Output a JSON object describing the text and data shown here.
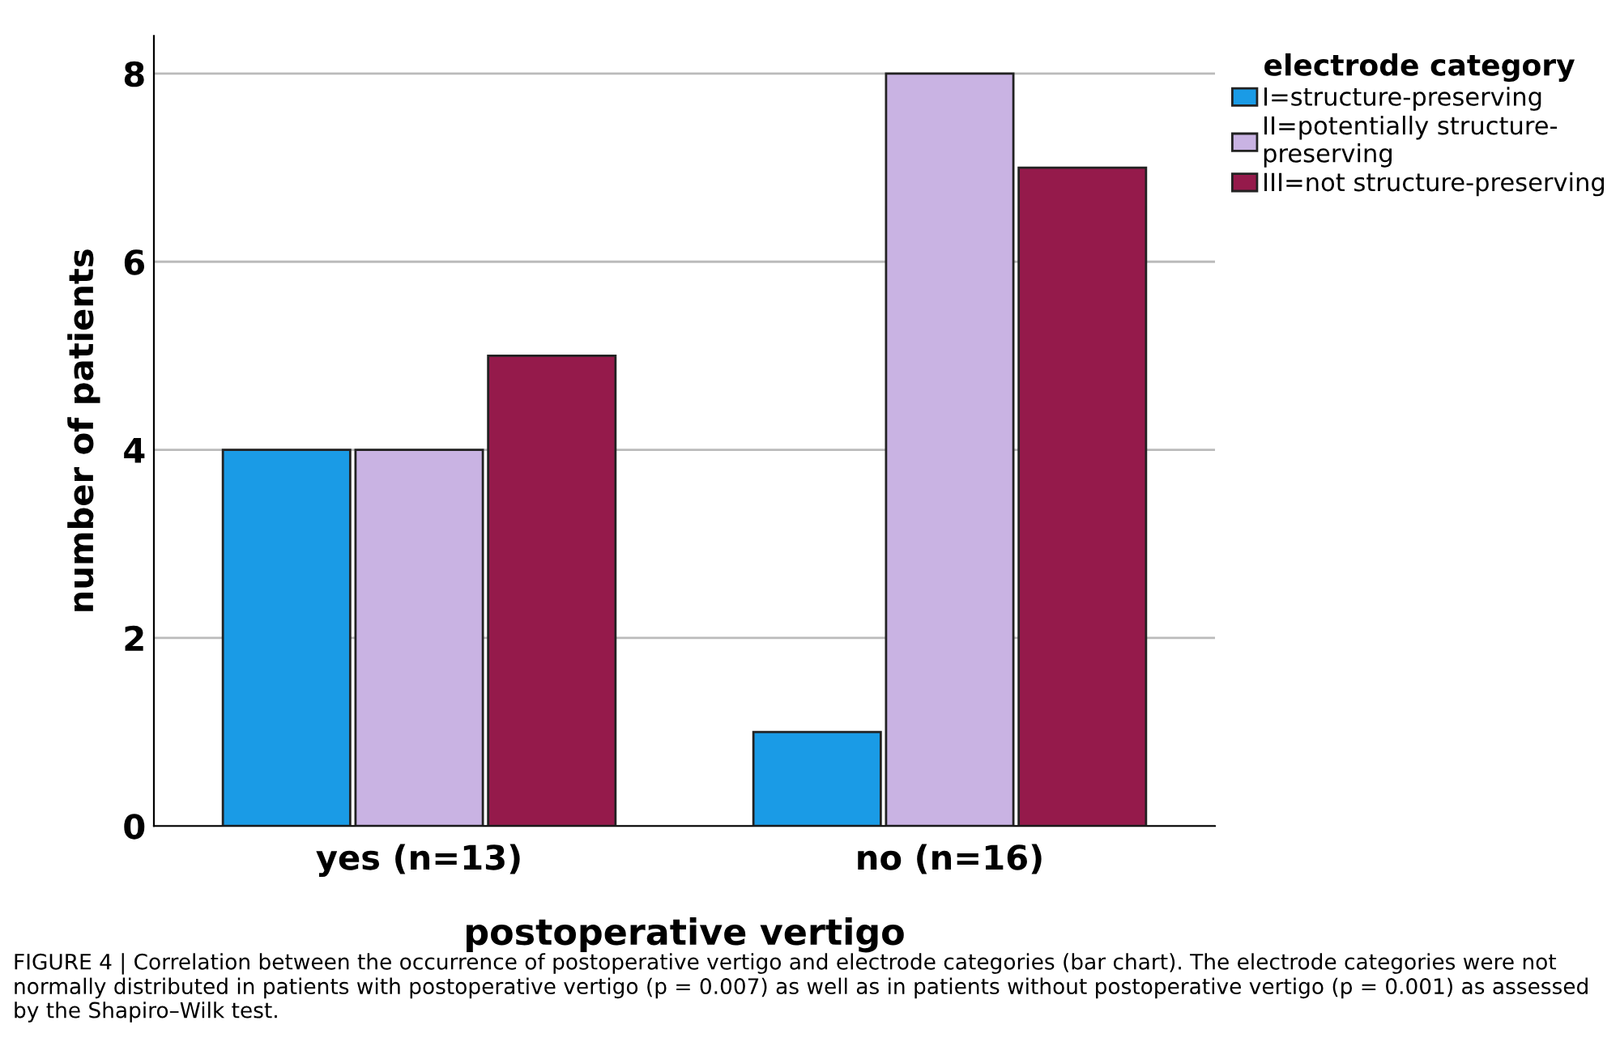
{
  "chart_data": {
    "type": "bar",
    "xlabel": "postoperative vertigo",
    "ylabel": "number of patients",
    "legend_title": "electrode category",
    "categories": [
      "yes (n=13)",
      "no (n=16)"
    ],
    "series": [
      {
        "name": "I=structure-preserving",
        "color": "#1a9be6",
        "values": [
          4,
          1
        ]
      },
      {
        "name": "II=potentially structure-\npreserving",
        "color": "#c9b3e3",
        "values": [
          4,
          8
        ]
      },
      {
        "name": "III=not structure-preserving",
        "color": "#951a4b",
        "values": [
          5,
          7
        ]
      }
    ],
    "ylim": [
      0,
      8.4
    ],
    "yticks": [
      0,
      2,
      4,
      6,
      8
    ],
    "grid": "y",
    "legend": "top right",
    "annotations": [
      "FIGURE 4 | Correlation between the occurrence of postoperative vertigo and electrode categories (bar chart). The electrode categories were not normally distributed in patients with postoperative vertigo (p = 0.007) as well as in patients without postoperative vertigo (p = 0.001) as assessed by the Shapiro–Wilk test."
    ]
  }
}
